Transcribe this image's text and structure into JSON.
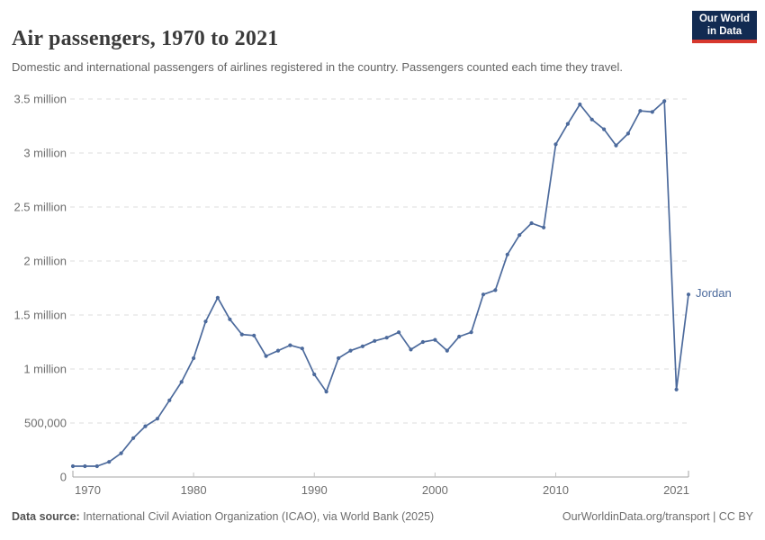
{
  "header": {
    "title": "Air passengers, 1970 to 2021",
    "subtitle": "Domestic and international passengers of airlines registered in the country. Passengers counted each time they travel.",
    "logo": {
      "line1": "Our World",
      "line2": "in Data",
      "bg_color": "#122B52",
      "accent_color": "#D7382E"
    }
  },
  "footer": {
    "source_label": "Data source:",
    "source_text": " International Civil Aviation Organization (ICAO), via World Bank (2025)",
    "right_text": "OurWorldinData.org/transport | CC BY"
  },
  "chart_data": {
    "type": "line",
    "title": "Air passengers, 1970 to 2021",
    "entity": "Jordan",
    "line_color": "#4C6A9C",
    "grid": "dashed-horizontal",
    "legend_position": "line-end",
    "xlim": [
      1970,
      2021
    ],
    "ylim": [
      0,
      3500000
    ],
    "xticks": [
      1970,
      1980,
      1990,
      2000,
      2010,
      2021
    ],
    "yticks": [
      {
        "value": 0,
        "label": "0"
      },
      {
        "value": 500000,
        "label": "500,000"
      },
      {
        "value": 1000000,
        "label": "1 million"
      },
      {
        "value": 1500000,
        "label": "1.5 million"
      },
      {
        "value": 2000000,
        "label": "2 million"
      },
      {
        "value": 2500000,
        "label": "2.5 million"
      },
      {
        "value": 3000000,
        "label": "3 million"
      },
      {
        "value": 3500000,
        "label": "3.5 million"
      }
    ],
    "x": [
      1970,
      1971,
      1972,
      1973,
      1974,
      1975,
      1976,
      1977,
      1978,
      1979,
      1980,
      1981,
      1982,
      1983,
      1984,
      1985,
      1986,
      1987,
      1988,
      1989,
      1990,
      1991,
      1992,
      1993,
      1994,
      1995,
      1996,
      1997,
      1998,
      1999,
      2000,
      2001,
      2002,
      2003,
      2004,
      2005,
      2006,
      2007,
      2008,
      2009,
      2010,
      2011,
      2012,
      2013,
      2014,
      2015,
      2016,
      2017,
      2018,
      2019,
      2020,
      2021
    ],
    "series": [
      {
        "name": "Jordan",
        "values": [
          100000,
          100000,
          100000,
          140000,
          220000,
          360000,
          470000,
          540000,
          710000,
          880000,
          1100000,
          1440000,
          1660000,
          1460000,
          1320000,
          1310000,
          1120000,
          1170000,
          1220000,
          1190000,
          950000,
          790000,
          1100000,
          1170000,
          1210000,
          1260000,
          1290000,
          1340000,
          1180000,
          1250000,
          1270000,
          1170000,
          1300000,
          1340000,
          1690000,
          1730000,
          2060000,
          2240000,
          2350000,
          2310000,
          3080000,
          3270000,
          3450000,
          3310000,
          3220000,
          3070000,
          3180000,
          3390000,
          3380000,
          3480000,
          810000,
          1690000
        ]
      }
    ]
  }
}
